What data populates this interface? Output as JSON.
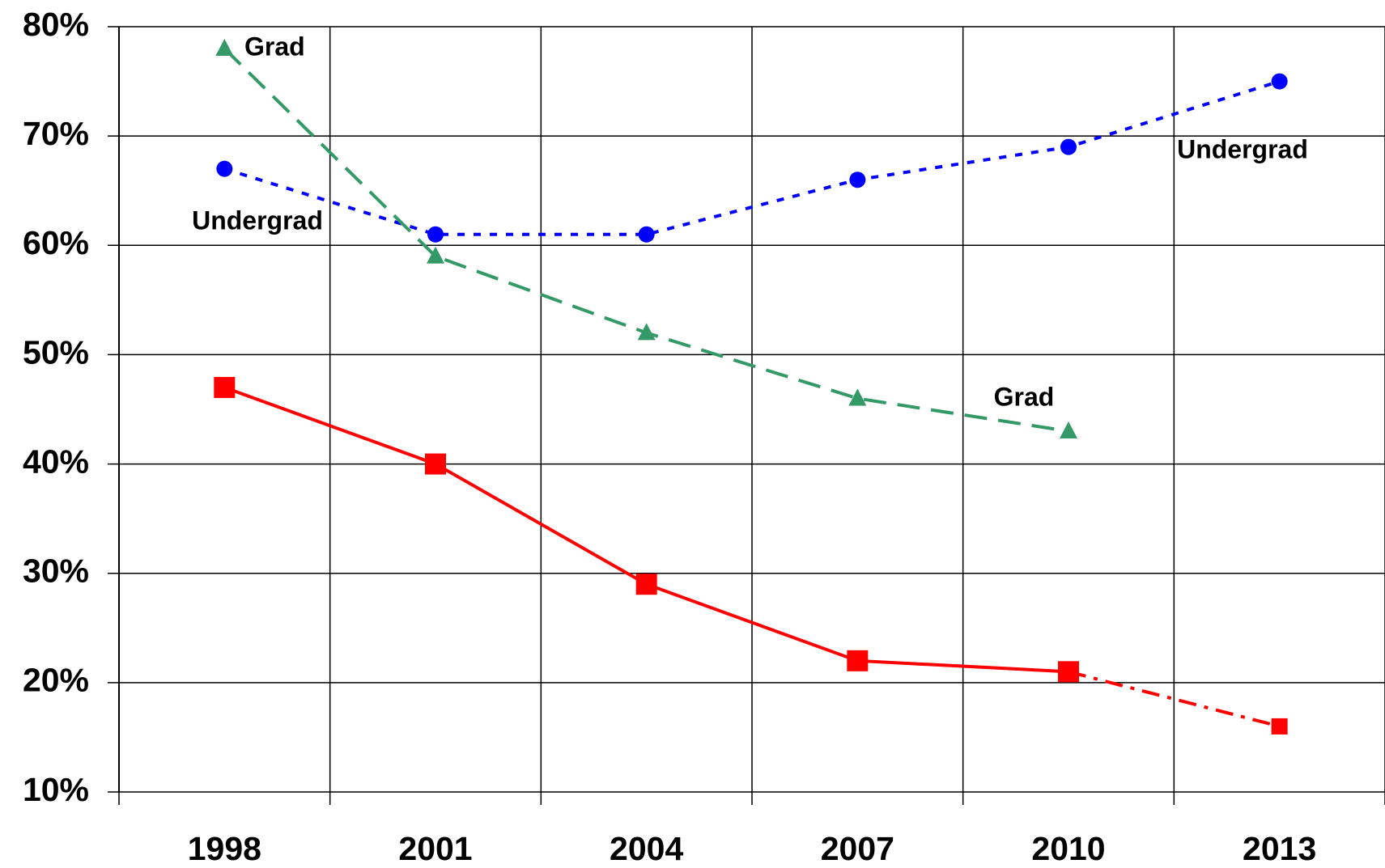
{
  "chart_data": {
    "type": "line",
    "categories": [
      "1998",
      "2001",
      "2004",
      "2007",
      "2010",
      "2013"
    ],
    "series": [
      {
        "name": "Undergrad",
        "color": "#0000ff",
        "line_style": "dotted",
        "marker": "circle",
        "values": [
          67,
          61,
          61,
          66,
          69,
          75
        ]
      },
      {
        "name": "Grad",
        "color": "#339966",
        "line_style": "dashed",
        "marker": "triangle",
        "values": [
          78,
          59,
          52,
          46,
          43,
          null
        ]
      },
      {
        "color": "#ff0000",
        "line_style": "solid",
        "marker": "square",
        "values": [
          47,
          40,
          29,
          22,
          21,
          16
        ]
      }
    ],
    "annotations": [
      "Grad",
      "Undergrad",
      "Undergrad",
      "Grad"
    ],
    "ylim": [
      10,
      80
    ],
    "yticks": [
      {
        "value": 10,
        "label": "10%"
      },
      {
        "value": 20,
        "label": "20%"
      },
      {
        "value": 30,
        "label": "30%"
      },
      {
        "value": 40,
        "label": "40%"
      },
      {
        "value": 50,
        "label": "50%"
      },
      {
        "value": 60,
        "label": "60%"
      },
      {
        "value": 70,
        "label": "70%"
      },
      {
        "value": 80,
        "label": "80%"
      }
    ],
    "grid": true
  }
}
